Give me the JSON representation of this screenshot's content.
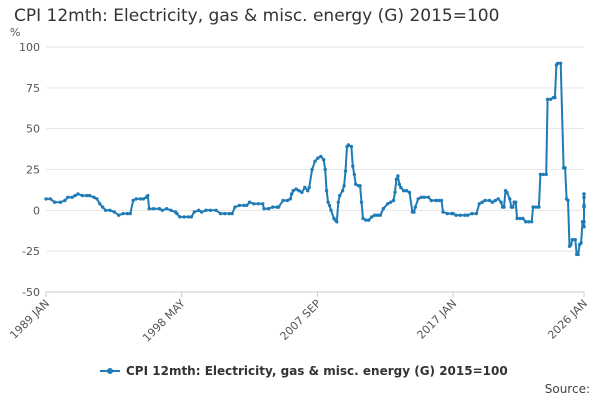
{
  "title": "CPI 12mth: Electricity, gas & misc. energy (G) 2015=100",
  "source_label": "Source:",
  "colors": {
    "series": "#1f7bb6",
    "grid": "#e6e6e6",
    "axis": "#cccccc"
  },
  "chart_data": {
    "type": "line",
    "title": "CPI 12mth: Electricity, gas & misc. energy (G) 2015=100",
    "ylabel": "%",
    "ylim": [
      -50,
      100
    ],
    "yticks": [
      -50,
      -25,
      0,
      25,
      50,
      75,
      100
    ],
    "xlim": [
      1989.0,
      2026.0
    ],
    "xticks": [
      {
        "label": "1989 JAN",
        "x": 1989.0
      },
      {
        "label": "1998 MAY",
        "x": 1998.33
      },
      {
        "label": "2007 SEP",
        "x": 2007.67
      },
      {
        "label": "2017 JAN",
        "x": 2017.0
      },
      {
        "label": "2026 JAN",
        "x": 2026.0
      }
    ],
    "legend": "bottom",
    "grid": true,
    "series": [
      {
        "name": "CPI 12mth: Electricity, gas & misc. energy (G) 2015=100",
        "points": [
          [
            1989.0,
            7
          ],
          [
            1989.3,
            7
          ],
          [
            1989.6,
            5
          ],
          [
            1990.0,
            5
          ],
          [
            1990.3,
            6
          ],
          [
            1990.5,
            8
          ],
          [
            1990.8,
            8
          ],
          [
            1991.0,
            9
          ],
          [
            1991.2,
            10
          ],
          [
            1991.5,
            9
          ],
          [
            1991.8,
            9
          ],
          [
            1992.0,
            9
          ],
          [
            1992.3,
            8
          ],
          [
            1992.5,
            7
          ],
          [
            1992.7,
            4
          ],
          [
            1992.9,
            2
          ],
          [
            1993.1,
            0
          ],
          [
            1993.4,
            0
          ],
          [
            1993.7,
            -1
          ],
          [
            1994.0,
            -3
          ],
          [
            1994.3,
            -2
          ],
          [
            1994.6,
            -2
          ],
          [
            1994.8,
            -2
          ],
          [
            1995.0,
            6
          ],
          [
            1995.2,
            7
          ],
          [
            1995.5,
            7
          ],
          [
            1995.7,
            7
          ],
          [
            1995.9,
            8
          ],
          [
            1996.0,
            9
          ],
          [
            1996.1,
            1
          ],
          [
            1996.4,
            1
          ],
          [
            1996.8,
            1
          ],
          [
            1997.0,
            0
          ],
          [
            1997.3,
            1
          ],
          [
            1997.6,
            0
          ],
          [
            1997.9,
            -1
          ],
          [
            1998.0,
            -2
          ],
          [
            1998.2,
            -4
          ],
          [
            1998.5,
            -4
          ],
          [
            1998.8,
            -4
          ],
          [
            1999.0,
            -4
          ],
          [
            1999.2,
            -1
          ],
          [
            1999.5,
            0
          ],
          [
            1999.7,
            -1
          ],
          [
            2000.0,
            0
          ],
          [
            2000.3,
            0
          ],
          [
            2000.7,
            0
          ],
          [
            2001.0,
            -2
          ],
          [
            2001.3,
            -2
          ],
          [
            2001.6,
            -2
          ],
          [
            2001.8,
            -2
          ],
          [
            2002.0,
            2
          ],
          [
            2002.3,
            3
          ],
          [
            2002.6,
            3
          ],
          [
            2002.8,
            3
          ],
          [
            2003.0,
            5
          ],
          [
            2003.3,
            4
          ],
          [
            2003.6,
            4
          ],
          [
            2003.9,
            4
          ],
          [
            2004.0,
            1
          ],
          [
            2004.3,
            1
          ],
          [
            2004.6,
            2
          ],
          [
            2004.9,
            2
          ],
          [
            2005.0,
            2
          ],
          [
            2005.3,
            6
          ],
          [
            2005.6,
            6
          ],
          [
            2005.8,
            7
          ],
          [
            2005.9,
            10
          ],
          [
            2006.0,
            12
          ],
          [
            2006.2,
            13
          ],
          [
            2006.4,
            12
          ],
          [
            2006.6,
            11
          ],
          [
            2006.8,
            14
          ],
          [
            2007.0,
            12
          ],
          [
            2007.1,
            14
          ],
          [
            2007.3,
            25
          ],
          [
            2007.5,
            30
          ],
          [
            2007.7,
            32
          ],
          [
            2007.9,
            33
          ],
          [
            2008.1,
            31
          ],
          [
            2008.2,
            25
          ],
          [
            2008.3,
            12
          ],
          [
            2008.4,
            5
          ],
          [
            2008.5,
            3
          ],
          [
            2008.6,
            0
          ],
          [
            2008.8,
            -5
          ],
          [
            2008.9,
            -6
          ],
          [
            2009.0,
            -7
          ],
          [
            2009.1,
            5
          ],
          [
            2009.2,
            9
          ],
          [
            2009.4,
            12
          ],
          [
            2009.5,
            15
          ],
          [
            2009.6,
            24
          ],
          [
            2009.7,
            39
          ],
          [
            2009.8,
            40
          ],
          [
            2010.0,
            39
          ],
          [
            2010.1,
            27
          ],
          [
            2010.2,
            22
          ],
          [
            2010.3,
            16
          ],
          [
            2010.5,
            15
          ],
          [
            2010.6,
            15
          ],
          [
            2010.7,
            5
          ],
          [
            2010.8,
            -5
          ],
          [
            2011.0,
            -6
          ],
          [
            2011.2,
            -6
          ],
          [
            2011.4,
            -4
          ],
          [
            2011.6,
            -3
          ],
          [
            2011.8,
            -3
          ],
          [
            2012.0,
            -3
          ],
          [
            2012.2,
            1
          ],
          [
            2012.5,
            4
          ],
          [
            2012.7,
            5
          ],
          [
            2012.9,
            6
          ],
          [
            2013.0,
            11
          ],
          [
            2013.1,
            19
          ],
          [
            2013.2,
            21
          ],
          [
            2013.3,
            16
          ],
          [
            2013.4,
            14
          ],
          [
            2013.6,
            12
          ],
          [
            2013.8,
            12
          ],
          [
            2014.0,
            11
          ],
          [
            2014.2,
            -1
          ],
          [
            2014.3,
            -1
          ],
          [
            2014.4,
            2
          ],
          [
            2014.6,
            7
          ],
          [
            2014.8,
            8
          ],
          [
            2015.0,
            8
          ],
          [
            2015.3,
            8
          ],
          [
            2015.5,
            6
          ],
          [
            2015.8,
            6
          ],
          [
            2016.0,
            6
          ],
          [
            2016.2,
            6
          ],
          [
            2016.3,
            -1
          ],
          [
            2016.6,
            -2
          ],
          [
            2016.9,
            -2
          ],
          [
            2017.0,
            -2
          ],
          [
            2017.2,
            -3
          ],
          [
            2017.5,
            -3
          ],
          [
            2017.8,
            -3
          ],
          [
            2018.0,
            -3
          ],
          [
            2018.3,
            -2
          ],
          [
            2018.6,
            -2
          ],
          [
            2018.8,
            4
          ],
          [
            2019.0,
            5
          ],
          [
            2019.2,
            6
          ],
          [
            2019.5,
            6
          ],
          [
            2019.7,
            5
          ],
          [
            2019.9,
            6
          ],
          [
            2020.1,
            7
          ],
          [
            2020.3,
            5
          ],
          [
            2020.4,
            2
          ],
          [
            2020.5,
            2
          ],
          [
            2020.6,
            12
          ],
          [
            2020.7,
            11
          ],
          [
            2020.9,
            7
          ],
          [
            2021.0,
            2
          ],
          [
            2021.1,
            2
          ],
          [
            2021.2,
            5
          ],
          [
            2021.3,
            5
          ],
          [
            2021.4,
            -5
          ],
          [
            2021.6,
            -5
          ],
          [
            2021.8,
            -5
          ],
          [
            2022.0,
            -7
          ],
          [
            2022.2,
            -7
          ],
          [
            2022.4,
            -7
          ],
          [
            2022.5,
            2
          ],
          [
            2022.7,
            2
          ],
          [
            2022.9,
            2
          ],
          [
            2023.0,
            22
          ],
          [
            2023.2,
            22
          ],
          [
            2023.4,
            22
          ],
          [
            2023.5,
            68
          ],
          [
            2023.7,
            68
          ],
          [
            2023.9,
            69
          ],
          [
            2024.0,
            69
          ],
          [
            2024.1,
            89
          ],
          [
            2024.2,
            90
          ],
          [
            2024.4,
            90
          ],
          [
            2024.6,
            26
          ],
          [
            2024.7,
            26
          ],
          [
            2024.8,
            7
          ],
          [
            2024.9,
            6
          ],
          [
            2025.0,
            -22
          ],
          [
            2025.1,
            -21
          ],
          [
            2025.2,
            -18
          ],
          [
            2025.4,
            -18
          ],
          [
            2025.5,
            -27
          ],
          [
            2025.6,
            -27
          ],
          [
            2025.7,
            -21
          ],
          [
            2025.8,
            -20
          ],
          [
            2025.9,
            -7
          ],
          [
            2026.0,
            -7
          ],
          [
            2026.1,
            -10
          ],
          [
            2026.2,
            -10
          ],
          [
            2026.3,
            8
          ],
          [
            2026.4,
            8
          ],
          [
            2026.5,
            10
          ],
          [
            2026.6,
            10
          ],
          [
            2026.7,
            2
          ],
          [
            2026.8,
            3
          ],
          [
            2026.9,
            3
          ]
        ]
      }
    ]
  }
}
